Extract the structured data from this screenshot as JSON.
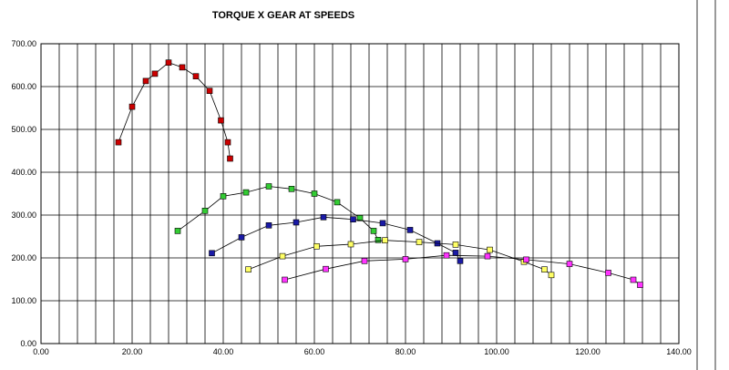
{
  "chart_data": {
    "type": "scatter",
    "title": "TORQUE X GEAR AT SPEEDS",
    "xlabel": "",
    "ylabel": "",
    "xlim": [
      0,
      140
    ],
    "ylim": [
      0,
      700
    ],
    "x_ticks": [
      "0.00",
      "20.00",
      "40.00",
      "60.00",
      "80.00",
      "100.00",
      "120.00",
      "140.00"
    ],
    "y_ticks": [
      "0.00",
      "100.00",
      "200.00",
      "300.00",
      "400.00",
      "500.00",
      "600.00",
      "700.00"
    ],
    "x_grid_step": 4,
    "y_grid_step": 100,
    "grid": true,
    "legend": "none",
    "series": [
      {
        "color": "#cc0000",
        "points": [
          [
            17,
            470
          ],
          [
            20,
            553
          ],
          [
            23,
            613
          ],
          [
            25,
            630
          ],
          [
            28,
            656
          ],
          [
            31,
            645
          ],
          [
            34,
            624
          ],
          [
            37,
            590
          ],
          [
            39.5,
            521
          ],
          [
            41,
            470
          ],
          [
            41.5,
            432
          ]
        ]
      },
      {
        "color": "#33cc33",
        "points": [
          [
            30,
            263
          ],
          [
            36,
            310
          ],
          [
            40,
            344
          ],
          [
            45,
            353
          ],
          [
            50,
            367
          ],
          [
            55,
            361
          ],
          [
            60,
            350
          ],
          [
            65,
            330
          ],
          [
            70,
            293
          ],
          [
            73,
            263
          ],
          [
            74,
            242
          ]
        ]
      },
      {
        "color": "#1a1aa6",
        "points": [
          [
            37.5,
            211
          ],
          [
            44,
            248
          ],
          [
            50,
            276
          ],
          [
            56,
            283
          ],
          [
            62,
            295
          ],
          [
            68.5,
            290
          ],
          [
            75,
            281
          ],
          [
            81,
            265
          ],
          [
            87,
            234
          ],
          [
            91,
            212
          ],
          [
            92,
            193
          ]
        ]
      },
      {
        "color": "#ffff66",
        "points": [
          [
            45.5,
            173
          ],
          [
            53,
            204
          ],
          [
            60.5,
            227
          ],
          [
            68,
            232
          ],
          [
            75.5,
            241
          ],
          [
            83,
            237
          ],
          [
            91,
            231
          ],
          [
            98.5,
            219
          ],
          [
            106,
            191
          ],
          [
            110.5,
            173
          ],
          [
            112,
            160
          ]
        ]
      },
      {
        "color": "#ff33ff",
        "points": [
          [
            53.5,
            149
          ],
          [
            62.5,
            174
          ],
          [
            71,
            193
          ],
          [
            80,
            197
          ],
          [
            89,
            206
          ],
          [
            98,
            204
          ],
          [
            106.5,
            196
          ],
          [
            116,
            186
          ],
          [
            124.5,
            165
          ],
          [
            130,
            149
          ],
          [
            131.5,
            137
          ]
        ]
      }
    ]
  }
}
